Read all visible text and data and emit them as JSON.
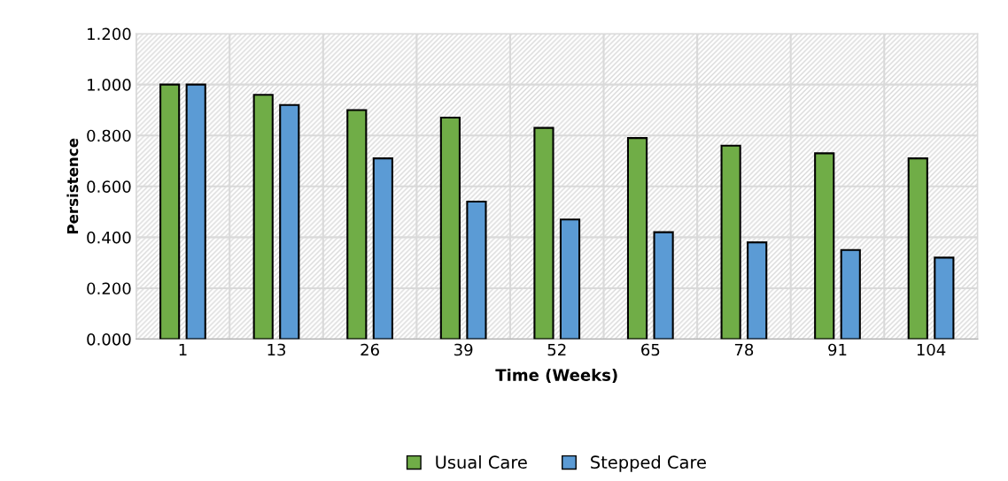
{
  "chart_data": {
    "type": "bar",
    "xlabel": "Time (Weeks)",
    "ylabel": "Persistence",
    "categories": [
      "1",
      "13",
      "26",
      "39",
      "52",
      "65",
      "78",
      "91",
      "104"
    ],
    "series": [
      {
        "name": "Usual Care",
        "color": "#70ad47",
        "values": [
          1.0,
          0.96,
          0.9,
          0.87,
          0.83,
          0.79,
          0.76,
          0.73,
          0.71
        ]
      },
      {
        "name": "Stepped Care",
        "color": "#5b9bd5",
        "values": [
          1.0,
          0.92,
          0.71,
          0.54,
          0.47,
          0.42,
          0.38,
          0.35,
          0.32
        ]
      }
    ],
    "ylim": [
      0,
      1.2
    ],
    "yticks": [
      {
        "value": 0,
        "label": "0.000"
      },
      {
        "value": 0.2,
        "label": "0.200"
      },
      {
        "value": 0.4,
        "label": "0.400"
      },
      {
        "value": 0.6,
        "label": "0.600"
      },
      {
        "value": 0.8,
        "label": "0.800"
      },
      {
        "value": 1.0,
        "label": "1.000"
      },
      {
        "value": 1.2,
        "label": "1.200"
      }
    ],
    "grid": true,
    "legend": "bottom"
  }
}
